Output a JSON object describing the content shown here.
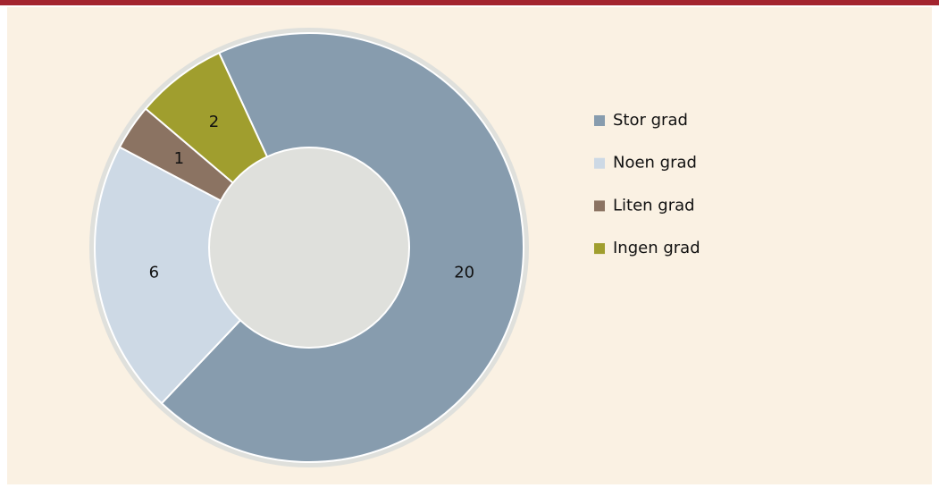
{
  "chart_data": {
    "type": "donut",
    "categories": [
      "Stor grad",
      "Noen grad",
      "Liten grad",
      "Ingen grad"
    ],
    "values": [
      20,
      6,
      1,
      2
    ],
    "colors": [
      "#879cae",
      "#cdd9e5",
      "#8b7362",
      "#a09e2e"
    ],
    "legend": "right"
  }
}
